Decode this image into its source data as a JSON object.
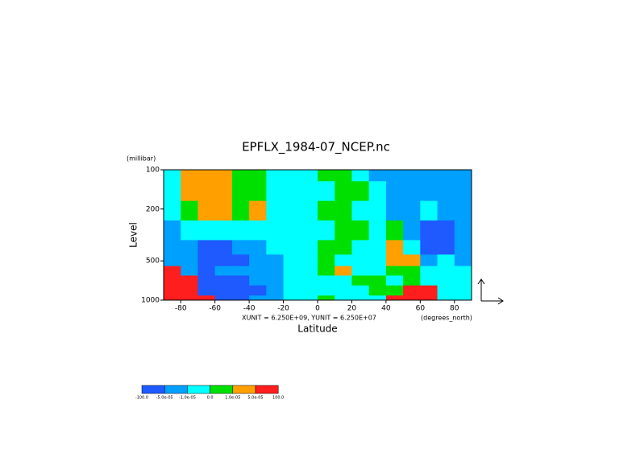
{
  "chart_data": {
    "type": "contour",
    "title": "EPFLX_1984-07_NCEP.nc",
    "ylabel": "Level",
    "yunit": "(millibar)",
    "xlabel": "Latitude",
    "xunit": "(degrees_north)",
    "annotation": "XUNIT = 6.250E+09, YUNIT = 6.250E+07",
    "x": [
      -85,
      -75,
      -65,
      -55,
      -45,
      -35,
      -25,
      -15,
      -5,
      5,
      15,
      25,
      35,
      45,
      55,
      65,
      75,
      85
    ],
    "y": [
      100,
      150,
      200,
      300,
      400,
      500,
      600,
      700,
      850,
      1000
    ],
    "z": [
      [
        -5e-06,
        3e-05,
        3e-05,
        3e-05,
        5e-06,
        5e-06,
        -5e-06,
        -5e-06,
        -5e-06,
        5e-06,
        5e-06,
        -5e-06,
        -3e-05,
        -3e-05,
        -3e-05,
        -3e-05,
        -3e-05,
        -3e-05
      ],
      [
        -5e-06,
        3e-05,
        3e-05,
        3e-05,
        5e-06,
        5e-06,
        -5e-06,
        -5e-06,
        -5e-06,
        -5e-06,
        5e-06,
        5e-06,
        -5e-06,
        -3e-05,
        -3e-05,
        -3e-05,
        -3e-05,
        -3e-05
      ],
      [
        -5e-06,
        5e-06,
        3e-05,
        3e-05,
        5e-06,
        3e-05,
        -5e-06,
        -5e-06,
        -5e-06,
        5e-06,
        5e-06,
        -5e-06,
        -5e-06,
        -3e-05,
        -3e-05,
        -5e-06,
        -3e-05,
        -3e-05
      ],
      [
        -3e-05,
        -5e-06,
        -5e-06,
        -5e-06,
        -5e-06,
        -5e-06,
        -5e-06,
        -5e-06,
        -5e-06,
        -5e-06,
        5e-06,
        5e-06,
        -5e-06,
        5e-06,
        -3e-05,
        -0.0001,
        -0.0001,
        -3e-05
      ],
      [
        -3e-05,
        -3e-05,
        -0.0001,
        -0.0001,
        -3e-05,
        -3e-05,
        -5e-06,
        -5e-06,
        -5e-06,
        5e-06,
        5e-06,
        -5e-06,
        -5e-06,
        3e-05,
        -5e-06,
        -0.0001,
        -0.0001,
        -3e-05
      ],
      [
        -3e-05,
        -3e-05,
        -0.0001,
        -0.0001,
        -0.0001,
        -3e-05,
        -3e-05,
        -5e-06,
        -5e-06,
        5e-06,
        -5e-06,
        -5e-06,
        -5e-06,
        3e-05,
        3e-05,
        -3e-05,
        -5e-06,
        -3e-05
      ],
      [
        0.0002,
        -3e-05,
        -0.0001,
        -3e-05,
        -3e-05,
        -3e-05,
        -3e-05,
        -5e-06,
        -5e-06,
        5e-06,
        3e-05,
        -5e-06,
        -5e-06,
        5e-06,
        5e-06,
        -5e-06,
        -5e-06,
        -5e-06
      ],
      [
        0.0002,
        0.0002,
        -0.0001,
        -0.0001,
        -0.0001,
        -3e-05,
        -3e-05,
        -5e-06,
        -5e-06,
        -5e-06,
        -5e-06,
        5e-06,
        5e-06,
        -5e-06,
        5e-06,
        -5e-06,
        -5e-06,
        -5e-06
      ],
      [
        0.0002,
        0.0002,
        -0.0001,
        -0.0001,
        -0.0001,
        -0.0001,
        -3e-05,
        -5e-06,
        -5e-06,
        -5e-06,
        -5e-06,
        -5e-06,
        5e-06,
        5e-06,
        0.0002,
        0.0002,
        -5e-06,
        -5e-06
      ],
      [
        0.0002,
        0.0002,
        0.0002,
        -0.0001,
        -0.0001,
        -3e-05,
        -3e-05,
        -5e-06,
        -5e-06,
        5e-06,
        -5e-06,
        -5e-06,
        -5e-06,
        0.0002,
        0.0002,
        0.0002,
        -5e-06,
        -5e-06
      ]
    ],
    "xlim": [
      -90,
      90
    ],
    "xticks": [
      -80,
      -60,
      -40,
      -20,
      0,
      20,
      40,
      60,
      80
    ],
    "ylim": [
      1000,
      100
    ],
    "ylog": true,
    "yticks": [
      100,
      200,
      500,
      1000
    ],
    "colorbar": {
      "levels": [
        {
          "value": -100,
          "label": "-100.0"
        },
        {
          "value": -5e-05,
          "label": "-5.0e-05"
        },
        {
          "value": -1e-05,
          "label": "-1.0e-05"
        },
        {
          "value": 0,
          "label": "0.0"
        },
        {
          "value": 1e-05,
          "label": "1.0e-05"
        },
        {
          "value": 5e-05,
          "label": "5.0e-05"
        },
        {
          "value": 100,
          "label": "100.0"
        }
      ],
      "colors": [
        "#1e5aff",
        "#00a0ff",
        "#00ffff",
        "#00e000",
        "#ffa000",
        "#ff1e1e"
      ]
    }
  }
}
